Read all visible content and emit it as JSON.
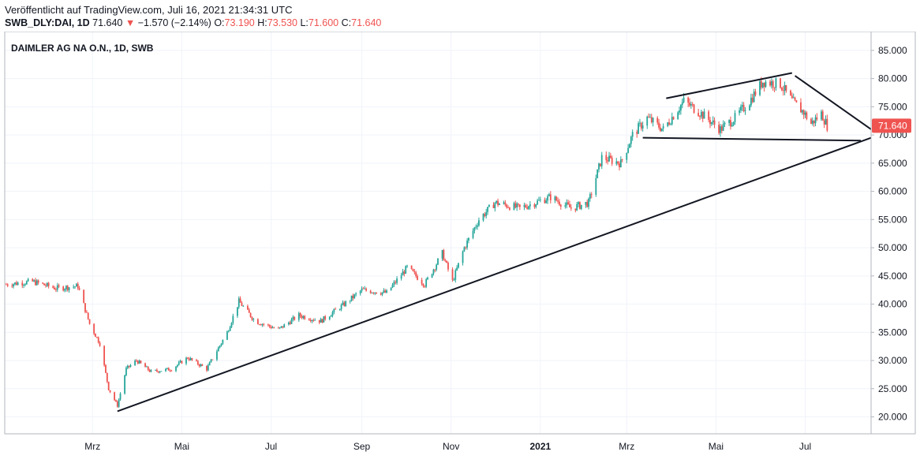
{
  "header": {
    "published": "Veröffentlicht auf TradingView.com, Juli 16, 2021 21:34:31 UTC",
    "symbol": "SWB_DLY:DAI, 1D",
    "last": "71.640",
    "arrow": "▼",
    "change": "−1.570 (−2.14%)",
    "open_label": "O:",
    "open": "73.190",
    "high_label": "H:",
    "high": "73.530",
    "low_label": "L:",
    "low": "71.600",
    "close_label": "C:",
    "close": "71.640"
  },
  "colors": {
    "up": "#26a69a",
    "down": "#ef5350",
    "trendline": "#131722",
    "grid": "#f0f3fa",
    "axis": "#b2b5be"
  },
  "chart_data": {
    "type": "candlestick",
    "title": "DAIMLER AG NA O.N., 1D, SWB",
    "ylim": [
      17000,
      87500
    ],
    "y_ticks": [
      "85.000",
      "80.000",
      "75.000",
      "70.000",
      "65.000",
      "60.000",
      "55.000",
      "50.000",
      "45.000",
      "40.000",
      "35.000",
      "30.000",
      "25.000",
      "20.000"
    ],
    "y_tick_values": [
      85000,
      80000,
      75000,
      70000,
      65000,
      60000,
      55000,
      50000,
      45000,
      40000,
      35000,
      30000,
      25000,
      20000
    ],
    "x_ticks": [
      "Mrz",
      "Mai",
      "Jul",
      "Sep",
      "Nov",
      "2021",
      "Mrz",
      "Mai",
      "Jul"
    ],
    "x_tick_dates": [
      "2020-03-01",
      "2020-05-01",
      "2020-07-01",
      "2020-09-01",
      "2020-11-01",
      "2021-01-01",
      "2021-03-01",
      "2021-05-01",
      "2021-07-01"
    ],
    "x_range": [
      "2020-01-01",
      "2021-08-15"
    ],
    "last_price": "71.640",
    "last_value": 71640,
    "price_path": [
      [
        "2020-01-02",
        43500
      ],
      [
        "2020-01-20",
        44000
      ],
      [
        "2020-02-05",
        42800
      ],
      [
        "2020-02-20",
        43200
      ],
      [
        "2020-02-28",
        36500
      ],
      [
        "2020-03-06",
        33000
      ],
      [
        "2020-03-12",
        25000
      ],
      [
        "2020-03-18",
        22000
      ],
      [
        "2020-03-24",
        28500
      ],
      [
        "2020-03-31",
        30000
      ],
      [
        "2020-04-10",
        28000
      ],
      [
        "2020-04-24",
        28500
      ],
      [
        "2020-05-05",
        30500
      ],
      [
        "2020-05-18",
        28500
      ],
      [
        "2020-06-01",
        35000
      ],
      [
        "2020-06-09",
        40500
      ],
      [
        "2020-06-20",
        37000
      ],
      [
        "2020-07-06",
        35500
      ],
      [
        "2020-07-20",
        38000
      ],
      [
        "2020-08-04",
        37000
      ],
      [
        "2020-08-20",
        40000
      ],
      [
        "2020-09-01",
        42500
      ],
      [
        "2020-09-18",
        42000
      ],
      [
        "2020-10-02",
        46500
      ],
      [
        "2020-10-14",
        43500
      ],
      [
        "2020-10-26",
        49000
      ],
      [
        "2020-11-02",
        44000
      ],
      [
        "2020-11-10",
        50000
      ],
      [
        "2020-11-20",
        55000
      ],
      [
        "2020-12-01",
        58000
      ],
      [
        "2020-12-18",
        57000
      ],
      [
        "2021-01-08",
        59000
      ],
      [
        "2021-01-22",
        57000
      ],
      [
        "2021-02-03",
        58000
      ],
      [
        "2021-02-12",
        66000
      ],
      [
        "2021-02-25",
        65000
      ],
      [
        "2021-03-05",
        70000
      ],
      [
        "2021-03-15",
        73000
      ],
      [
        "2021-03-26",
        71000
      ],
      [
        "2021-04-09",
        76000
      ],
      [
        "2021-04-20",
        74000
      ],
      [
        "2021-05-04",
        71000
      ],
      [
        "2021-05-14",
        73000
      ],
      [
        "2021-05-24",
        76000
      ],
      [
        "2021-06-02",
        79500
      ],
      [
        "2021-06-14",
        79000
      ],
      [
        "2021-06-22",
        76000
      ],
      [
        "2021-06-30",
        74000
      ],
      [
        "2021-07-05",
        72000
      ],
      [
        "2021-07-12",
        73800
      ],
      [
        "2021-07-16",
        71640
      ]
    ],
    "trendlines": [
      {
        "from": [
          "2020-03-18",
          21000
        ],
        "to": [
          "2021-08-15",
          69500
        ]
      },
      {
        "from": [
          "2021-03-12",
          69500
        ],
        "to": [
          "2021-08-08",
          69000
        ]
      },
      {
        "from": [
          "2021-03-28",
          76500
        ],
        "to": [
          "2021-06-22",
          81000
        ]
      },
      {
        "from": [
          "2021-06-24",
          80500
        ],
        "to": [
          "2021-08-15",
          71000
        ]
      }
    ]
  }
}
